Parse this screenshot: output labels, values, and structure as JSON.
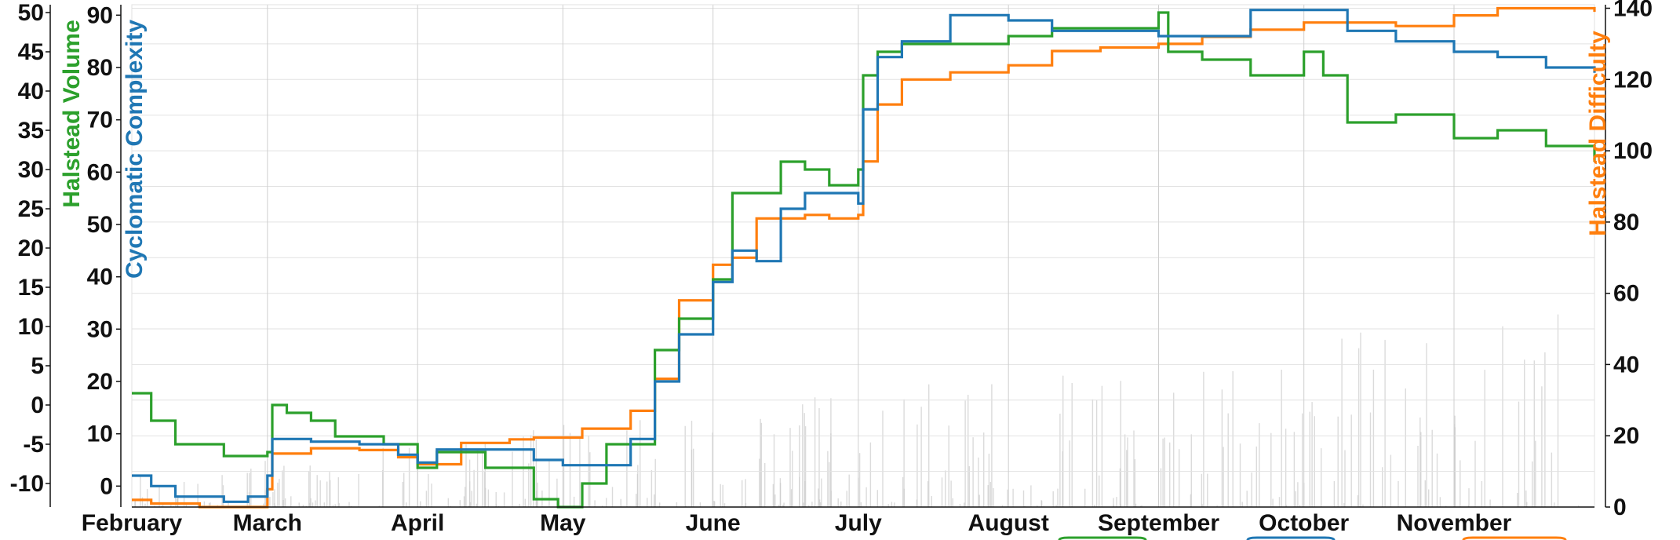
{
  "chart_data": {
    "type": "line",
    "title": "",
    "colors": {
      "halstead_volume": "#2ca02c",
      "cyclomatic_complexity": "#1f77b4",
      "halstead_difficulty": "#ff7f0e",
      "activity": "#cccccc"
    },
    "grid": true,
    "x_axis": {
      "type": "date",
      "range": [
        "2019-02-01",
        "2019-11-30"
      ],
      "tick_labels": [
        "February",
        "March",
        "April",
        "May",
        "June",
        "July",
        "August",
        "September",
        "October",
        "November"
      ],
      "tick_dates": [
        "2019-02-01",
        "2019-03-01",
        "2019-04-01",
        "2019-05-01",
        "2019-06-01",
        "2019-07-01",
        "2019-08-01",
        "2019-09-01",
        "2019-10-01",
        "2019-11-01"
      ]
    },
    "y_axes": {
      "halstead_volume": {
        "label": "Halstead Volume",
        "ticks": [
          "-10",
          "-5",
          "0",
          "5",
          "10",
          "15",
          "20",
          "25",
          "30",
          "35",
          "40",
          "45",
          "50"
        ],
        "range": [
          -13,
          51
        ]
      },
      "cyclomatic_complexity": {
        "label": "Cyclomatic Complexity",
        "ticks": [
          "0",
          "10",
          "20",
          "30",
          "40",
          "50",
          "60",
          "70",
          "80",
          "90"
        ],
        "range": [
          -4,
          92
        ]
      },
      "halstead_difficulty": {
        "label": "Halstead Difficulty",
        "ticks": [
          "0",
          "20",
          "40",
          "60",
          "80",
          "100",
          "120",
          "140"
        ],
        "range": [
          0,
          141
        ]
      }
    },
    "series": [
      {
        "name": "Halstead Volume",
        "axis": "halstead_volume",
        "x": [
          "2019-02-01",
          "2019-02-05",
          "2019-02-10",
          "2019-02-20",
          "2019-03-01",
          "2019-03-02",
          "2019-03-05",
          "2019-03-10",
          "2019-03-15",
          "2019-03-25",
          "2019-04-01",
          "2019-04-05",
          "2019-04-15",
          "2019-04-25",
          "2019-04-30",
          "2019-05-05",
          "2019-05-10",
          "2019-05-20",
          "2019-05-25",
          "2019-06-01",
          "2019-06-05",
          "2019-06-15",
          "2019-06-20",
          "2019-06-25",
          "2019-07-01",
          "2019-07-02",
          "2019-07-05",
          "2019-07-10",
          "2019-07-20",
          "2019-08-01",
          "2019-08-10",
          "2019-08-20",
          "2019-09-01",
          "2019-09-03",
          "2019-09-10",
          "2019-09-20",
          "2019-10-01",
          "2019-10-05",
          "2019-10-10",
          "2019-10-20",
          "2019-11-01",
          "2019-11-10",
          "2019-11-20",
          "2019-11-30"
        ],
        "values": [
          1.5,
          -2,
          -5,
          -6.5,
          -6,
          0,
          -1,
          -2,
          -4,
          -5,
          -8,
          -6,
          -8,
          -12,
          -13,
          -10,
          -5,
          7,
          11,
          16,
          27,
          31,
          30,
          28,
          30,
          42,
          45,
          46,
          46,
          47,
          48,
          48,
          50,
          45,
          44,
          42,
          45,
          42,
          36,
          37,
          34,
          35,
          33,
          31
        ]
      },
      {
        "name": "Cyclomatic Complexity",
        "axis": "cyclomatic_complexity",
        "x": [
          "2019-02-01",
          "2019-02-05",
          "2019-02-10",
          "2019-02-20",
          "2019-02-25",
          "2019-03-01",
          "2019-03-02",
          "2019-03-10",
          "2019-03-20",
          "2019-03-28",
          "2019-04-01",
          "2019-04-05",
          "2019-04-15",
          "2019-04-25",
          "2019-05-01",
          "2019-05-05",
          "2019-05-15",
          "2019-05-20",
          "2019-05-25",
          "2019-06-01",
          "2019-06-05",
          "2019-06-10",
          "2019-06-15",
          "2019-06-20",
          "2019-06-25",
          "2019-07-01",
          "2019-07-02",
          "2019-07-05",
          "2019-07-10",
          "2019-07-20",
          "2019-08-01",
          "2019-08-10",
          "2019-08-20",
          "2019-09-01",
          "2019-09-10",
          "2019-09-20",
          "2019-10-01",
          "2019-10-10",
          "2019-10-20",
          "2019-11-01",
          "2019-11-10",
          "2019-11-20",
          "2019-11-30"
        ],
        "values": [
          2,
          0,
          -2,
          -3,
          -2,
          2,
          9,
          8.5,
          8,
          6,
          4.5,
          7,
          7,
          5,
          4,
          4,
          9,
          20,
          29,
          39,
          45,
          43,
          53,
          56,
          56,
          54,
          72,
          82,
          85,
          90,
          89,
          87,
          87,
          86,
          86,
          91,
          91,
          87,
          85,
          83,
          82,
          80,
          79
        ]
      },
      {
        "name": "Halstead Difficulty",
        "axis": "halstead_difficulty",
        "x": [
          "2019-02-01",
          "2019-02-05",
          "2019-02-15",
          "2019-02-25",
          "2019-03-01",
          "2019-03-02",
          "2019-03-10",
          "2019-03-20",
          "2019-03-28",
          "2019-04-01",
          "2019-04-10",
          "2019-04-20",
          "2019-04-25",
          "2019-05-05",
          "2019-05-15",
          "2019-05-20",
          "2019-05-25",
          "2019-06-01",
          "2019-06-05",
          "2019-06-10",
          "2019-06-20",
          "2019-06-25",
          "2019-07-01",
          "2019-07-02",
          "2019-07-05",
          "2019-07-10",
          "2019-07-20",
          "2019-08-01",
          "2019-08-10",
          "2019-08-20",
          "2019-09-01",
          "2019-09-10",
          "2019-09-20",
          "2019-10-01",
          "2019-10-10",
          "2019-10-20",
          "2019-11-01",
          "2019-11-10",
          "2019-11-20",
          "2019-11-30"
        ],
        "values": [
          2,
          1,
          0,
          0,
          5,
          15,
          16.5,
          16,
          14,
          12,
          18,
          19,
          19.5,
          22,
          27,
          36,
          58,
          68,
          70,
          81,
          82,
          81,
          82,
          97,
          113,
          120,
          122,
          124,
          128,
          129,
          130,
          132,
          134,
          136,
          136,
          135,
          138,
          140,
          140,
          139
        ]
      }
    ]
  }
}
